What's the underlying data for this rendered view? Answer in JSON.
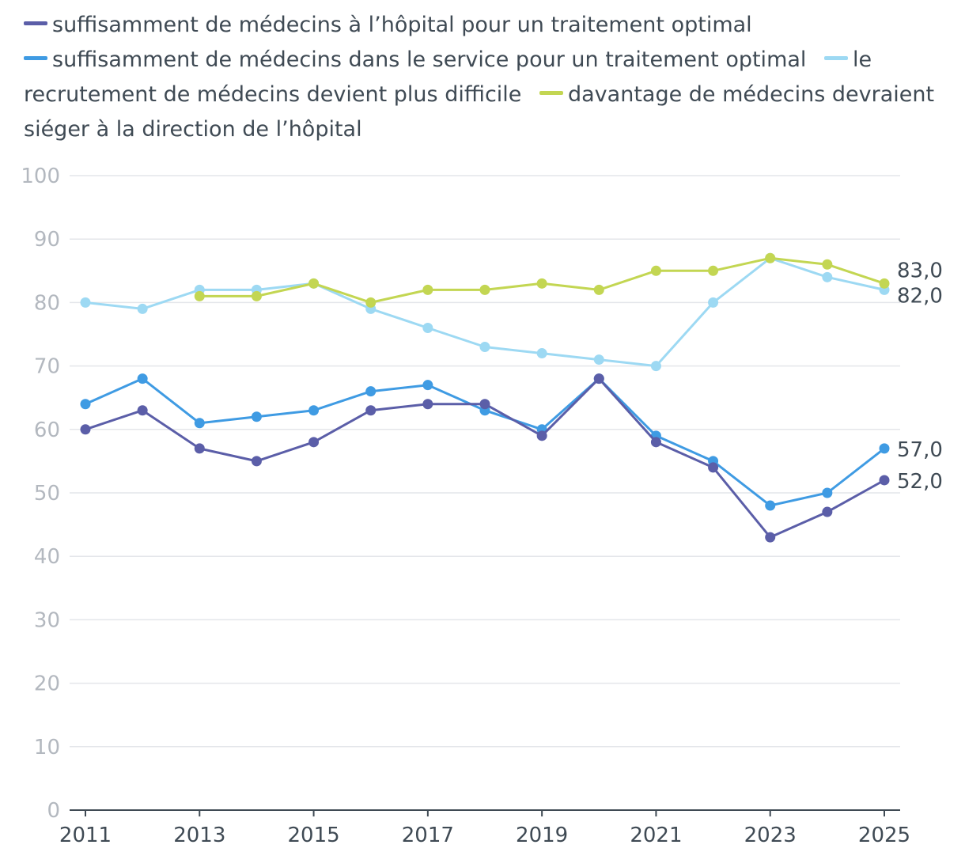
{
  "chart_data": {
    "type": "line",
    "title": "",
    "xlabel": "",
    "ylabel": "",
    "x": [
      2011,
      2012,
      2013,
      2014,
      2015,
      2016,
      2017,
      2018,
      2019,
      2020,
      2021,
      2022,
      2023,
      2024,
      2025
    ],
    "xticks": [
      "2011",
      "2013",
      "2015",
      "2017",
      "2019",
      "2021",
      "2023",
      "2025"
    ],
    "ylim": [
      0,
      100
    ],
    "yticks": [
      "0",
      "10",
      "20",
      "30",
      "40",
      "50",
      "60",
      "70",
      "80",
      "90",
      "100"
    ],
    "grid": true,
    "legend_position": "top",
    "series": [
      {
        "name": "suffisamment de médecins à l’hôpital pour un traitement optimal",
        "color": "#5b5ea8",
        "values": [
          60,
          63,
          57,
          55,
          58,
          63,
          64,
          64,
          59,
          68,
          58,
          54,
          43,
          47,
          52
        ],
        "end_label": "52,0"
      },
      {
        "name": "suffisamment de médecins dans le service pour un traitement optimal",
        "color": "#3f9be3",
        "values": [
          64,
          68,
          61,
          62,
          63,
          66,
          67,
          63,
          60,
          68,
          59,
          55,
          48,
          50,
          57
        ],
        "end_label": "57,0"
      },
      {
        "name": "le recrutement de médecins devient plus difficile",
        "color": "#9dd9f3",
        "values": [
          80,
          79,
          82,
          82,
          83,
          79,
          76,
          73,
          72,
          71,
          70,
          80,
          87,
          84,
          82
        ],
        "end_label": "82,0"
      },
      {
        "name": "davantage de médecins devraient siéger à la direction de l’hôpital",
        "color": "#c3d652",
        "values": [
          null,
          null,
          81,
          81,
          83,
          80,
          82,
          82,
          83,
          82,
          85,
          85,
          87,
          86,
          83
        ],
        "end_label": "83,0"
      }
    ]
  }
}
